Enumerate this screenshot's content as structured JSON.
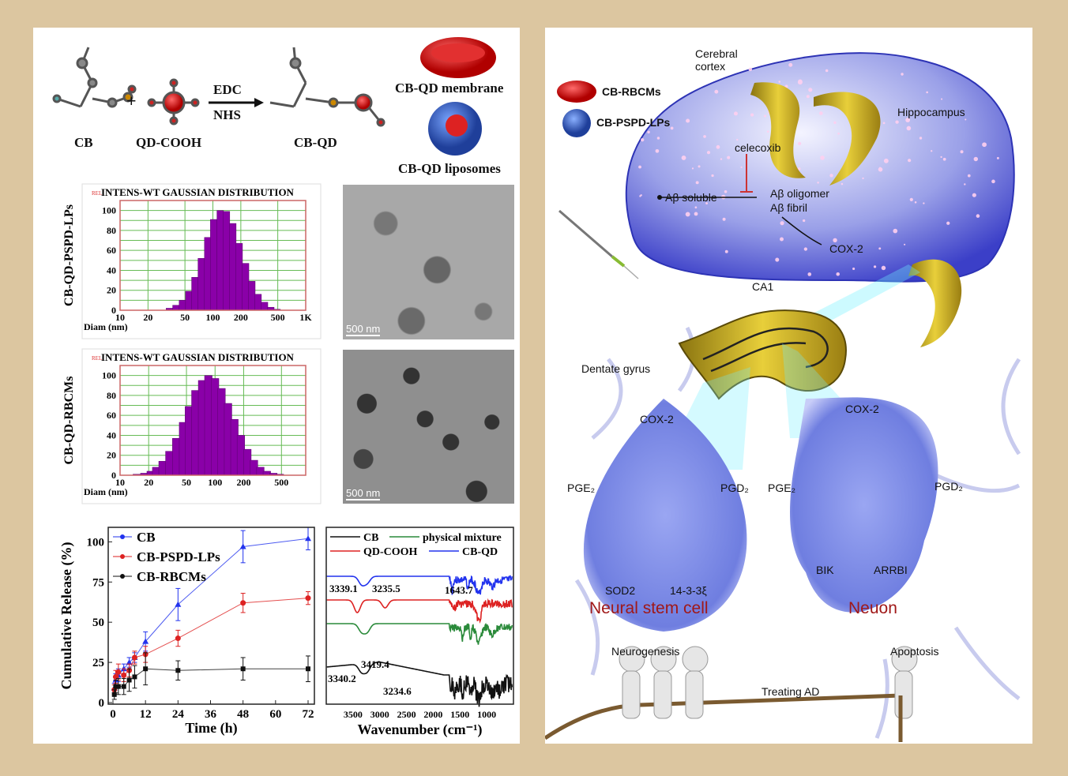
{
  "scheme": {
    "cb": "CB",
    "qd_cooh": "QD-COOH",
    "reagent_top": "EDC",
    "reagent_bottom": "NHS",
    "plus": "+",
    "product": "CB-QD",
    "membrane": "CB-QD membrane",
    "liposomes": "CB-QD liposomes"
  },
  "tem": {
    "scale_1": "500 nm",
    "scale_2": "500 nm"
  },
  "colors": {
    "cb": "#2233ee",
    "pspd": "#dd2222",
    "rbcm": "#111111",
    "bar": "#8a00a8",
    "grid": "#66bb55",
    "pmix": "#2a8a3a",
    "background": "#dcc6a0",
    "label_red": "#a01818"
  },
  "chart_data": [
    {
      "type": "bar",
      "title": "INTENS-WT GAUSSIAN DISTRIBUTION",
      "corner_tag": "REL",
      "ylabel": "CB-QD-PSPD-LPs",
      "xlabel": "Diam (nm)",
      "xscale": "log",
      "xlim": [
        10,
        1000
      ],
      "ylim": [
        0,
        110
      ],
      "xticks": [
        "10",
        "20",
        "50",
        "100",
        "200",
        "500",
        "1K"
      ],
      "xtick_values": [
        10,
        20,
        50,
        100,
        200,
        500,
        1000
      ],
      "yticks": [
        0,
        20,
        40,
        60,
        80,
        100
      ],
      "grid": true,
      "diam_nm": [
        34,
        40,
        47,
        55,
        64,
        75,
        88,
        102,
        120,
        140,
        164,
        192,
        225,
        263,
        307,
        360,
        421,
        492
      ],
      "values": [
        2,
        5,
        10,
        19,
        33,
        52,
        73,
        91,
        100,
        99,
        87,
        67,
        47,
        29,
        16,
        8,
        3,
        1
      ]
    },
    {
      "type": "bar",
      "title": "INTENS-WT GAUSSIAN DISTRIBUTION",
      "corner_tag": "REL",
      "ylabel": "CB-QD-RBCMs",
      "xlabel": "Diam (nm)",
      "xscale": "log",
      "xlim": [
        10,
        900
      ],
      "ylim": [
        0,
        110
      ],
      "xticks": [
        "10",
        "20",
        "50",
        "100",
        "200",
        "500"
      ],
      "xtick_values": [
        10,
        20,
        50,
        100,
        200,
        500
      ],
      "yticks": [
        0,
        20,
        40,
        60,
        80,
        100
      ],
      "grid": true,
      "diam_nm": [
        15,
        18,
        21,
        24,
        28,
        33,
        39,
        46,
        53,
        62,
        73,
        85,
        100,
        117,
        137,
        160,
        187,
        219,
        257,
        300,
        351,
        411,
        481
      ],
      "values": [
        1,
        2,
        4,
        8,
        14,
        24,
        37,
        53,
        69,
        85,
        95,
        100,
        97,
        87,
        72,
        56,
        40,
        26,
        15,
        8,
        4,
        2,
        1
      ]
    },
    {
      "type": "line",
      "xlabel": "Time (h)",
      "ylabel": "Cumulative Release (%)",
      "xlim": [
        0,
        74
      ],
      "ylim": [
        0,
        110
      ],
      "xticks": [
        0,
        12,
        24,
        36,
        48,
        60,
        72
      ],
      "yticks": [
        0,
        25,
        50,
        75,
        100
      ],
      "legend": "top-left",
      "x": [
        0.5,
        1,
        2,
        4,
        6,
        8,
        12,
        24,
        48,
        72
      ],
      "series": [
        {
          "name": "CB",
          "marker": "triangle",
          "values": [
            9,
            14,
            17,
            21,
            25,
            28,
            38,
            61,
            97,
            102
          ],
          "errors": [
            3,
            4,
            4,
            3,
            3,
            3,
            6,
            10,
            10,
            7
          ]
        },
        {
          "name": "CB-PSPD-LPs",
          "marker": "circle",
          "values": [
            8,
            16,
            19,
            17,
            20,
            28,
            30,
            40,
            62,
            65
          ],
          "errors": [
            3,
            4,
            5,
            4,
            4,
            4,
            5,
            5,
            6,
            4
          ]
        },
        {
          "name": "CB-RBCMs",
          "marker": "square",
          "values": [
            5,
            10,
            10,
            10,
            14,
            16,
            21,
            20,
            21,
            21
          ],
          "errors": [
            3,
            4,
            5,
            5,
            7,
            7,
            10,
            6,
            7,
            8
          ]
        }
      ]
    },
    {
      "type": "line",
      "xlabel": "Wavenumber (cm⁻¹)",
      "xlim": [
        4000,
        500
      ],
      "xticks": [
        3500,
        3000,
        2500,
        2000,
        1500,
        1000
      ],
      "legend": "top",
      "series": [
        {
          "name": "CB"
        },
        {
          "name": "physical mixture"
        },
        {
          "name": "QD-COOH"
        },
        {
          "name": "CB-QD"
        }
      ],
      "annotations": [
        "3339.1",
        "3235.5",
        "1643.7",
        "3419.4",
        "3340.2",
        "3234.6"
      ]
    }
  ],
  "diagram": {
    "legend_rbcm": "CB-RBCMs",
    "legend_lp": "CB-PSPD-LPs",
    "cerebral_cortex": "Cerebral cortex",
    "hippocampus": "Hippocampus",
    "celecoxib": "celecoxib",
    "ab_soluble": "Aβ soluble",
    "ab_oligomer": "Aβ oligomer",
    "ab_fibril": "Aβ fibril",
    "cox2_brain": "COX-2",
    "ca1": "CA1",
    "dentate_gyrus": "Dentate gyrus",
    "cell_left": {
      "cox2": "COX-2",
      "pge2": "PGE₂",
      "pgd2": "PGD₂",
      "prot1": "SOD2",
      "prot2": "14-3-3ξ",
      "title": "Neural stem cell"
    },
    "cell_right": {
      "cox2": "COX-2",
      "pge2": "PGE₂",
      "pgd2": "PGD₂",
      "prot1": "BIK",
      "prot2": "ARRBI",
      "title": "Neuon"
    },
    "neurogenesis": "Neurogenesis",
    "apoptosis": "Apoptosis",
    "treating_ad": "Treating AD"
  }
}
